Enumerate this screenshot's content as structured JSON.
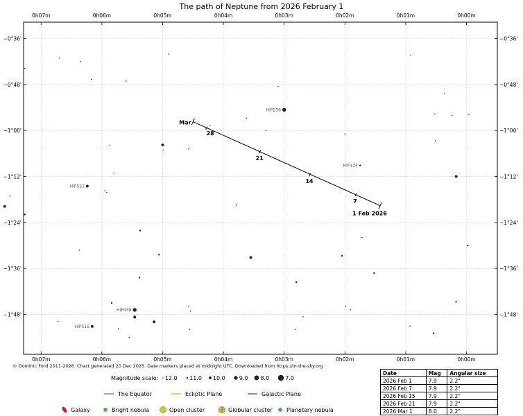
{
  "chart_data": {
    "type": "scatter",
    "title": "The path of Neptune from 2026 February 1",
    "x_ticks": [
      "0h07m",
      "0h06m",
      "0h05m",
      "0h04m",
      "0h03m",
      "0h02m",
      "0h01m",
      "0h00m"
    ],
    "y_ticks": [
      "−0°36'",
      "−0°48'",
      "−1°00'",
      "−1°12'",
      "−1°24'",
      "−1°36'",
      "−1°48'"
    ],
    "grid": true,
    "path": {
      "start": {
        "ra_min": 1.42,
        "dec_deg": -1.327
      },
      "end": {
        "ra_min": 4.5,
        "dec_deg": -0.962
      },
      "date_labels": [
        {
          "label": "1 Feb 2026",
          "ra_min": 1.42,
          "dec_deg": -1.327
        },
        {
          "label": "7",
          "ra_min": 1.82,
          "dec_deg": -1.28
        },
        {
          "label": "14",
          "ra_min": 2.58,
          "dec_deg": -1.193
        },
        {
          "label": "21",
          "ra_min": 3.4,
          "dec_deg": -1.093
        },
        {
          "label": "28",
          "ra_min": 4.28,
          "dec_deg": -0.99
        },
        {
          "label": "Mar",
          "ra_min": 4.5,
          "dec_deg": -0.962
        }
      ]
    },
    "stars": [
      {
        "ra_min": 6.35,
        "dec_deg": -0.7,
        "mag": 12.0
      },
      {
        "ra_min": 6.7,
        "dec_deg": -0.685,
        "mag": 12.0
      },
      {
        "ra_min": 7.27,
        "dec_deg": -0.73,
        "mag": 12.0
      },
      {
        "ra_min": 6.17,
        "dec_deg": -0.778,
        "mag": 12.0
      },
      {
        "ra_min": 5.6,
        "dec_deg": -0.785,
        "mag": 12.0
      },
      {
        "ra_min": 4.9,
        "dec_deg": -0.668,
        "mag": 12.0
      },
      {
        "ra_min": 3.1,
        "dec_deg": -0.808,
        "mag": 12.0
      },
      {
        "ra_min": 0.92,
        "dec_deg": -0.672,
        "mag": 12.0
      },
      {
        "ra_min": 0.24,
        "dec_deg": -0.935,
        "mag": 12.0
      },
      {
        "ra_min": 3.0,
        "dec_deg": -0.91,
        "mag": 9.0,
        "label": "HIP236"
      },
      {
        "ra_min": 3.62,
        "dec_deg": -0.947,
        "mag": 12.0
      },
      {
        "ra_min": 4.22,
        "dec_deg": -0.978,
        "mag": 12.0
      },
      {
        "ra_min": 3.3,
        "dec_deg": -1.0,
        "mag": 12.0
      },
      {
        "ra_min": 7.88,
        "dec_deg": -1.035,
        "mag": 12.0
      },
      {
        "ra_min": 5.87,
        "dec_deg": -1.065,
        "mag": 12.0
      },
      {
        "ra_min": 5.0,
        "dec_deg": -1.063,
        "mag": 10.0
      },
      {
        "ra_min": 4.99,
        "dec_deg": -1.085,
        "mag": 12.0
      },
      {
        "ra_min": 4.57,
        "dec_deg": -1.08,
        "mag": 12.0
      },
      {
        "ra_min": 2.0,
        "dec_deg": -1.015,
        "mag": 12.0
      },
      {
        "ra_min": 0.51,
        "dec_deg": -1.045,
        "mag": 12.0
      },
      {
        "ra_min": 1.75,
        "dec_deg": -1.152,
        "mag": 11.0,
        "label": "HIP134"
      },
      {
        "ra_min": 5.8,
        "dec_deg": -1.185,
        "mag": 12.0
      },
      {
        "ra_min": 0.17,
        "dec_deg": -1.2,
        "mag": 10.0
      },
      {
        "ra_min": 6.24,
        "dec_deg": -1.242,
        "mag": 10.0,
        "label": "HIP521"
      },
      {
        "ra_min": 5.95,
        "dec_deg": -1.262,
        "mag": 12.0
      },
      {
        "ra_min": 5.92,
        "dec_deg": -1.27,
        "mag": 12.0
      },
      {
        "ra_min": 7.51,
        "dec_deg": -1.285,
        "mag": 12.0
      },
      {
        "ra_min": 7.6,
        "dec_deg": -1.33,
        "mag": 10.0
      },
      {
        "ra_min": 7.27,
        "dec_deg": -1.365,
        "mag": 11.0
      },
      {
        "ra_min": 3.79,
        "dec_deg": -1.325,
        "mag": 12.0
      },
      {
        "ra_min": 5.37,
        "dec_deg": -1.435,
        "mag": 11.0
      },
      {
        "ra_min": 1.72,
        "dec_deg": -1.465,
        "mag": 12.0
      },
      {
        "ra_min": 6.37,
        "dec_deg": -1.52,
        "mag": 12.0
      },
      {
        "ra_min": 5.06,
        "dec_deg": -1.54,
        "mag": 11.0
      },
      {
        "ra_min": 3.55,
        "dec_deg": -1.552,
        "mag": 10.0
      },
      {
        "ra_min": 2.05,
        "dec_deg": -1.545,
        "mag": 11.0
      },
      {
        "ra_min": 1.52,
        "dec_deg": -1.62,
        "mag": 11.0
      },
      {
        "ra_min": 5.38,
        "dec_deg": -1.64,
        "mag": 11.0
      },
      {
        "ra_min": 2.8,
        "dec_deg": -1.66,
        "mag": 11.0
      },
      {
        "ra_min": 5.84,
        "dec_deg": -1.75,
        "mag": 11.0
      },
      {
        "ra_min": 4.57,
        "dec_deg": -1.765,
        "mag": 12.0
      },
      {
        "ra_min": 4.54,
        "dec_deg": -1.785,
        "mag": 12.0
      },
      {
        "ra_min": 1.99,
        "dec_deg": -1.765,
        "mag": 12.0
      },
      {
        "ra_min": 1.91,
        "dec_deg": -1.78,
        "mag": 12.0
      },
      {
        "ra_min": 0.17,
        "dec_deg": -1.745,
        "mag": 11.0
      },
      {
        "ra_min": 5.46,
        "dec_deg": -1.78,
        "mag": 9.0,
        "label": "HIP438"
      },
      {
        "ra_min": 5.46,
        "dec_deg": -1.805,
        "mag": 12.0
      },
      {
        "ra_min": 5.46,
        "dec_deg": -1.812,
        "mag": 10.0
      },
      {
        "ra_min": 2.69,
        "dec_deg": -1.81,
        "mag": 12.0
      },
      {
        "ra_min": 6.72,
        "dec_deg": -1.83,
        "mag": 12.0
      },
      {
        "ra_min": 5.14,
        "dec_deg": -1.832,
        "mag": 10.0
      },
      {
        "ra_min": 6.16,
        "dec_deg": -1.852,
        "mag": 10.0,
        "label": "HIP515"
      },
      {
        "ra_min": 5.73,
        "dec_deg": -1.862,
        "mag": 12.0
      },
      {
        "ra_min": 4.56,
        "dec_deg": -1.865,
        "mag": 12.0
      },
      {
        "ra_min": 2.82,
        "dec_deg": -1.865,
        "mag": 12.0
      },
      {
        "ra_min": 0.93,
        "dec_deg": -1.85,
        "mag": 12.0
      },
      {
        "ra_min": 0.54,
        "dec_deg": -1.882,
        "mag": 11.0
      },
      {
        "ra_min": 5.55,
        "dec_deg": -1.9,
        "mag": 12.0
      },
      {
        "ra_min": 0.36,
        "dec_deg": -0.84,
        "mag": 12.0
      },
      {
        "ra_min": 0.52,
        "dec_deg": -0.928,
        "mag": 12.0
      },
      {
        "ra_min": -0.04,
        "dec_deg": -0.93,
        "mag": 12.0
      },
      {
        "ra_min": -0.02,
        "dec_deg": -1.5,
        "mag": 11.0
      }
    ]
  },
  "credit": "© Dominic Ford 2011-2026. Chart generated 20 Dec 2025. Date markers placed at midnight UTC. Downloaded from https://in-the-sky.org",
  "legend": {
    "magnitude_label": "Magnitude scale:",
    "magnitudes": [
      "12.0",
      "11.0",
      "10.0",
      "9.0",
      "8.0",
      "7.0"
    ],
    "lines": [
      {
        "label": "The Equator",
        "color": "#b03cb0"
      },
      {
        "label": "Ecliptic Plane",
        "color": "#e0a020"
      },
      {
        "label": "Galactic Plane",
        "color": "#2a2ad0"
      }
    ],
    "objects": [
      {
        "label": "Galaxy",
        "color": "#d02020",
        "icon": "galaxy-icon"
      },
      {
        "label": "Bright nebula",
        "color": "#40b040",
        "icon": "bright-nebula-icon"
      },
      {
        "label": "Open cluster",
        "color": "#d0c830",
        "icon": "open-cluster-icon"
      },
      {
        "label": "Globular cluster",
        "color": "#d0c830",
        "icon": "globular-cluster-icon"
      },
      {
        "label": "Planetary nebula",
        "color": "#40b040",
        "icon": "planetary-nebula-icon"
      }
    ]
  },
  "table": {
    "headers": [
      "Date",
      "Mag",
      "Angular size"
    ],
    "rows": [
      [
        "2026 Feb 1",
        "7.9",
        "2.2\""
      ],
      [
        "2026 Feb 7",
        "7.9",
        "2.2\""
      ],
      [
        "2026 Feb 15",
        "7.9",
        "2.2\""
      ],
      [
        "2026 Feb 21",
        "7.9",
        "2.2\""
      ],
      [
        "2026 Mar 1",
        "8.0",
        "2.2\""
      ]
    ]
  }
}
